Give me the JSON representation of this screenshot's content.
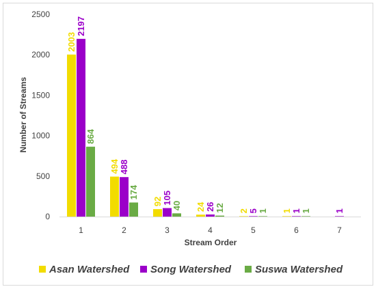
{
  "chart_data": {
    "type": "bar",
    "xlabel": "Stream Order",
    "ylabel": "Number of Streams",
    "ylim": [
      0,
      2500
    ],
    "yticks": [
      "0",
      "500",
      "1000",
      "1500",
      "2000",
      "2500"
    ],
    "grid": false,
    "legend_position": "bottom",
    "categories": [
      "1",
      "2",
      "3",
      "4",
      "5",
      "6",
      "7"
    ],
    "series": [
      {
        "name": "Asan Watershed",
        "color": "#f2dc00",
        "values": [
          2003,
          494,
          92,
          24,
          2,
          1,
          null
        ]
      },
      {
        "name": "Song Watershed",
        "color": "#9b00c9",
        "values": [
          2197,
          488,
          105,
          26,
          5,
          1,
          1
        ]
      },
      {
        "name": "Suswa Watershed",
        "color": "#6aab45",
        "values": [
          864,
          174,
          40,
          12,
          1,
          1,
          null
        ]
      }
    ]
  }
}
